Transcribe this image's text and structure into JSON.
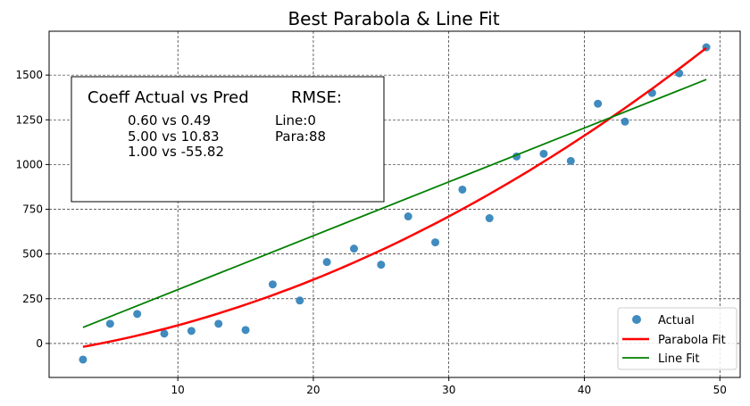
{
  "chart_data": {
    "type": "scatter",
    "title": "Best Parabola & Line Fit",
    "xlabel": "",
    "ylabel": "",
    "xlim": [
      0.5,
      51.5
    ],
    "ylim": [
      -190,
      1745
    ],
    "x_ticks": [
      10,
      20,
      30,
      40,
      50
    ],
    "y_ticks": [
      0,
      250,
      500,
      750,
      1000,
      1250,
      1500
    ],
    "grid": true,
    "legend_position": "lower-right",
    "series": [
      {
        "name": "Actual",
        "type": "scatter",
        "color": "#1f77b4",
        "x": [
          3,
          5,
          7,
          9,
          11,
          13,
          15,
          17,
          19,
          21,
          23,
          25,
          27,
          29,
          31,
          33,
          35,
          37,
          39,
          41,
          43,
          45,
          47,
          49
        ],
        "y": [
          -90,
          110,
          165,
          55,
          70,
          110,
          75,
          330,
          240,
          455,
          530,
          440,
          710,
          565,
          860,
          700,
          1045,
          1060,
          1020,
          1340,
          1240,
          1400,
          1510,
          1655
        ]
      },
      {
        "name": "Parabola Fit",
        "type": "curve",
        "color": "#ff0000",
        "equation": "0.49*x^2 + 10.83*x - 55.82",
        "coefficients": [
          0.49,
          10.83,
          -55.82
        ],
        "x_range": [
          3,
          49
        ]
      },
      {
        "name": "Line Fit",
        "type": "line",
        "color": "#008000",
        "x": [
          3,
          49
        ],
        "y": [
          90,
          1475
        ]
      }
    ],
    "annotation_box": {
      "header_left": "Coeff Actual vs Pred",
      "header_right": "RMSE:",
      "rows": [
        "0.60 vs 0.49",
        "5.00 vs 10.83",
        "1.00 vs -55.82"
      ],
      "rmse": [
        "Line:0",
        "Para:88"
      ]
    }
  }
}
